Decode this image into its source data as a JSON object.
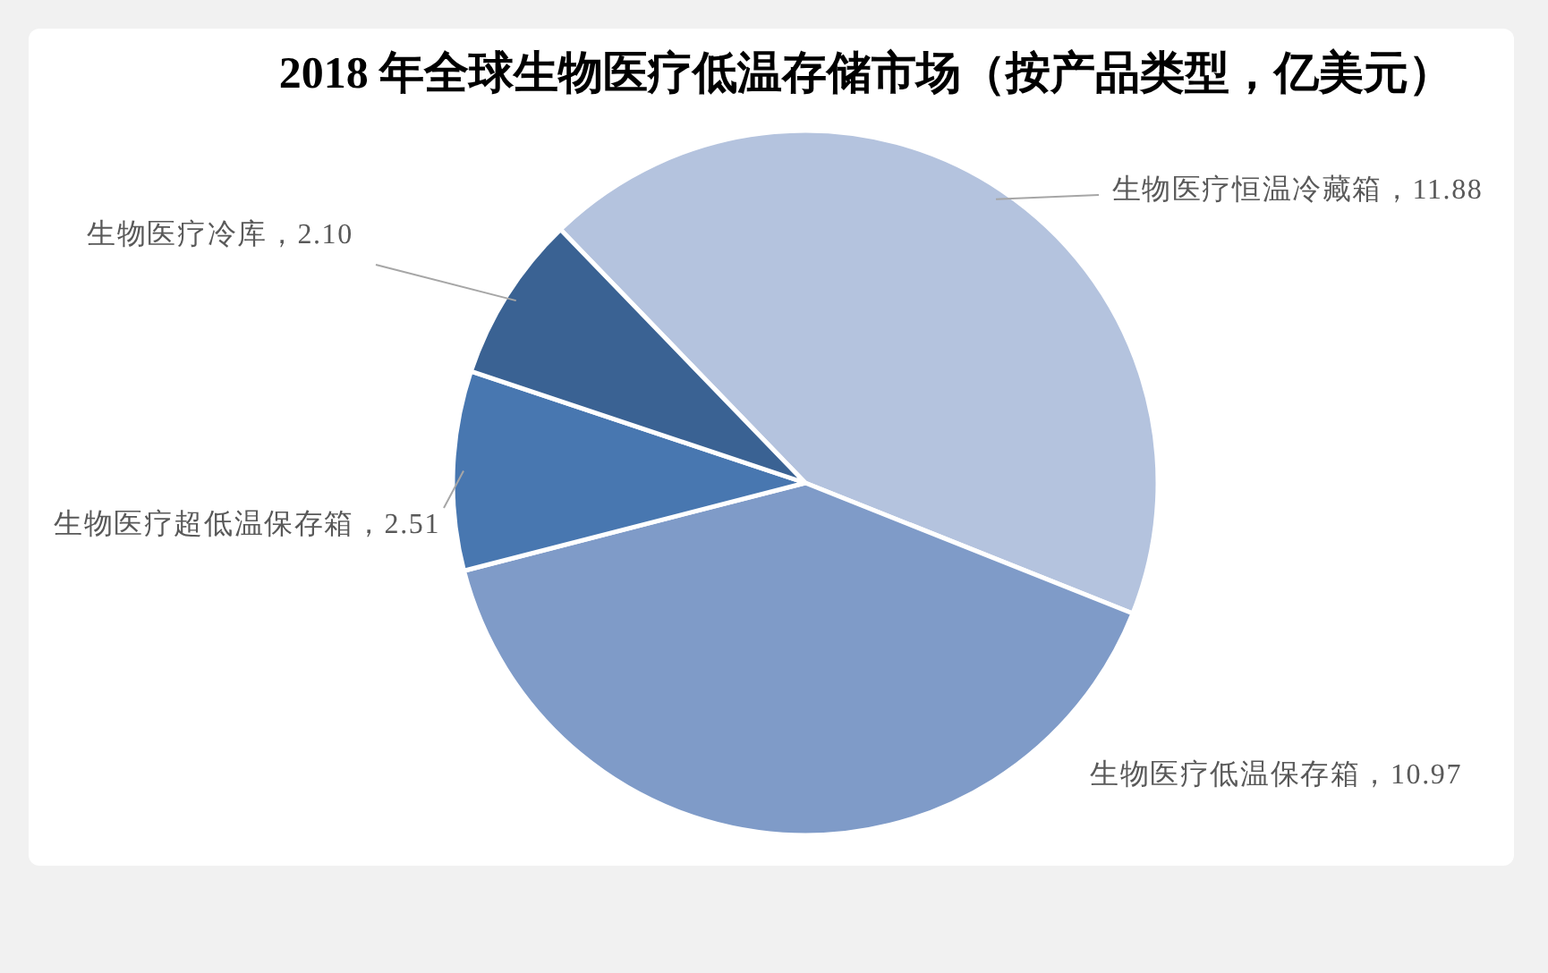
{
  "chart_data": {
    "type": "pie",
    "title": "2018 年全球生物医疗低温存储市场（按产品类型，亿美元）",
    "categories": [
      "生物医疗恒温冷藏箱",
      "生物医疗低温保存箱",
      "生物医疗超低温保存箱",
      "生物医疗冷库"
    ],
    "values": [
      11.88,
      10.97,
      2.51,
      2.1
    ],
    "colors": [
      "#b4c3de",
      "#7f9bc8",
      "#4877b0",
      "#3a6293"
    ],
    "value_labels": [
      "11.88",
      "10.97",
      "2.51",
      "2.10"
    ]
  }
}
